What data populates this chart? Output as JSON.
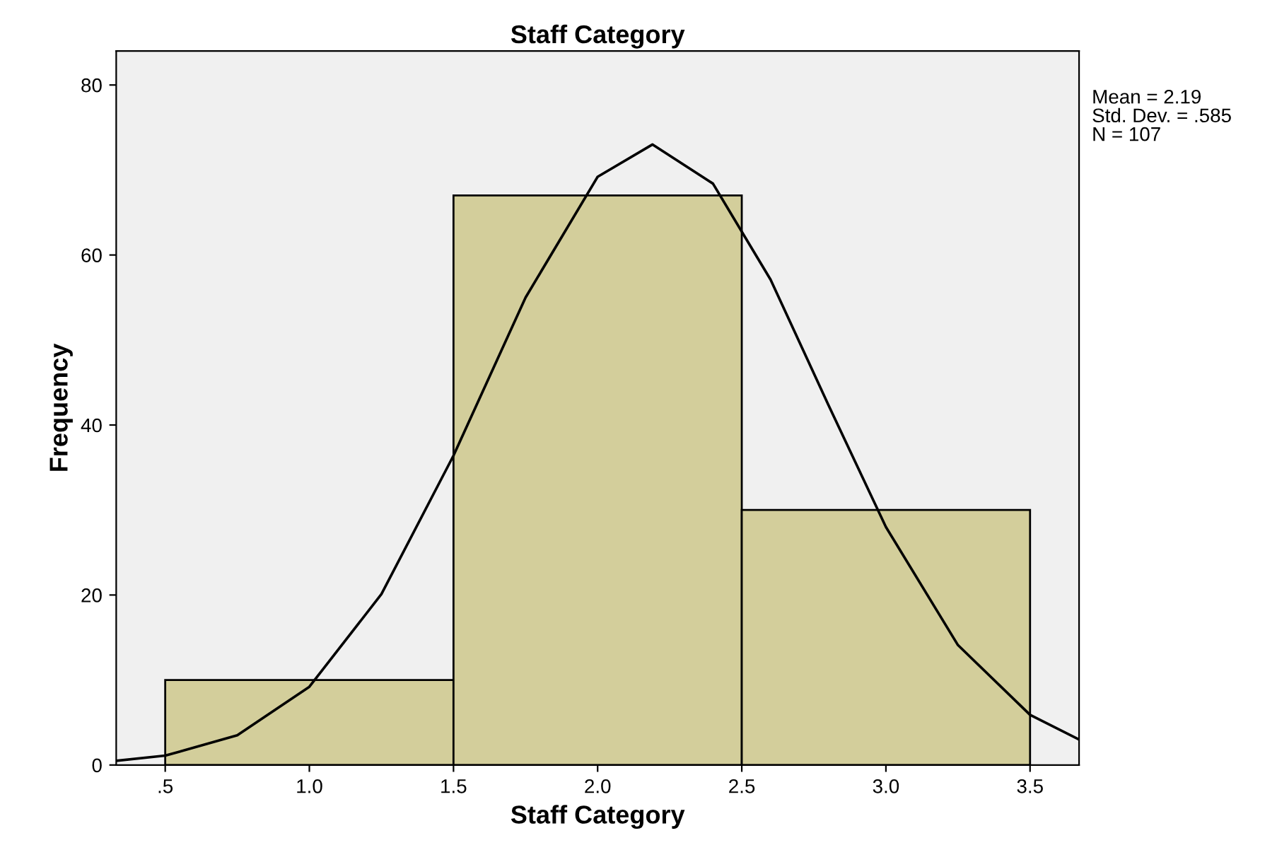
{
  "chart_data": {
    "type": "histogram",
    "title": "Staff Category",
    "xlabel": "Staff Category",
    "ylabel": "Frequency",
    "bins": [
      0.5,
      1.5,
      2.5,
      3.5
    ],
    "values": [
      10,
      67,
      30
    ],
    "color": "#d3ce9b",
    "series": [
      {
        "type": "line",
        "color": "#000000",
        "x": [
          0.33,
          0.5,
          0.75,
          1.0,
          1.25,
          1.5,
          1.75,
          2.0,
          2.19,
          2.4,
          2.6,
          2.8,
          3.0,
          3.25,
          3.5,
          3.67
        ],
        "values": [
          0.5,
          1.1,
          3.5,
          9.2,
          20.1,
          36.4,
          55.0,
          69.2,
          73.0,
          68.4,
          57.1,
          42.4,
          28.0,
          14.1,
          5.9,
          3.0
        ]
      }
    ],
    "xlim": [
      0.33,
      3.67
    ],
    "ylim": [
      0,
      84
    ],
    "xticks": [
      {
        "value": 0.5,
        "label": ".5"
      },
      {
        "value": 1.0,
        "label": "1.0"
      },
      {
        "value": 1.5,
        "label": "1.5"
      },
      {
        "value": 2.0,
        "label": "2.0"
      },
      {
        "value": 2.5,
        "label": "2.5"
      },
      {
        "value": 3.0,
        "label": "3.0"
      },
      {
        "value": 3.5,
        "label": "3.5"
      }
    ],
    "yticks": [
      0,
      20,
      40,
      60,
      80
    ],
    "annotations": [
      "Mean = 2.19",
      "Std. Dev. = .585",
      "N = 107"
    ],
    "line_style": "solid",
    "marker": "none"
  }
}
